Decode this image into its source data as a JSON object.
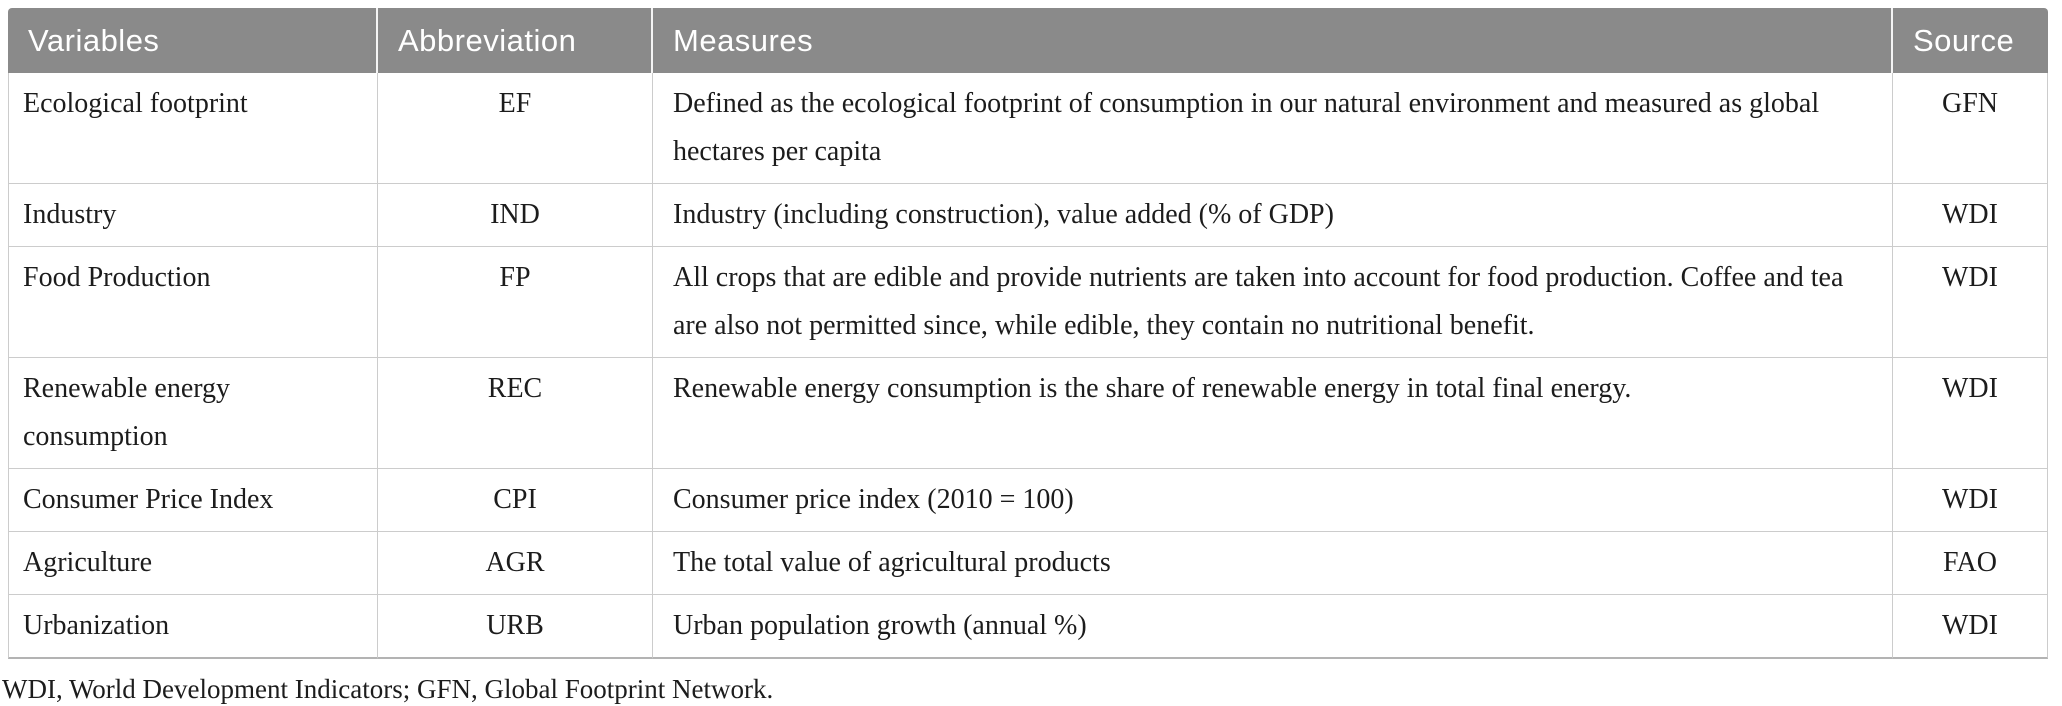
{
  "table": {
    "columns": [
      {
        "key": "variable",
        "label": "Variables"
      },
      {
        "key": "abbreviation",
        "label": "Abbreviation"
      },
      {
        "key": "measures",
        "label": "Measures"
      },
      {
        "key": "source",
        "label": "Source"
      }
    ],
    "rows": [
      {
        "variable": "Ecological footprint",
        "abbreviation": "EF",
        "measures": "Defined as the ecological footprint of consumption in our natural environment and measured as global hectares per capita",
        "source": "GFN"
      },
      {
        "variable": "Industry",
        "abbreviation": "IND",
        "measures": "Industry (including construction), value added (% of GDP)",
        "source": "WDI"
      },
      {
        "variable": "Food Production",
        "abbreviation": "FP",
        "measures": "All crops that are edible and provide nutrients are taken into account for food production. Coffee and tea are also not permitted since, while edible, they contain no nutritional benefit.",
        "source": "WDI"
      },
      {
        "variable": "Renewable energy consumption",
        "abbreviation": "REC",
        "measures": "Renewable energy consumption is the share of renewable energy in total final energy.",
        "source": "WDI"
      },
      {
        "variable": "Consumer Price Index",
        "abbreviation": "CPI",
        "measures": "Consumer price index (2010 = 100)",
        "source": "WDI"
      },
      {
        "variable": "Agriculture",
        "abbreviation": "AGR",
        "measures": "The total value of agricultural products",
        "source": "FAO"
      },
      {
        "variable": "Urbanization",
        "abbreviation": "URB",
        "measures": "Urban population growth (annual %)",
        "source": "WDI"
      }
    ],
    "footnote": "WDI, World Development Indicators; GFN, Global Footprint Network.",
    "colors": {
      "header_bg": "#8a8a8a",
      "header_text": "#ffffff",
      "body_text": "#1c1c1c",
      "grid_border": "#cccccc"
    }
  }
}
